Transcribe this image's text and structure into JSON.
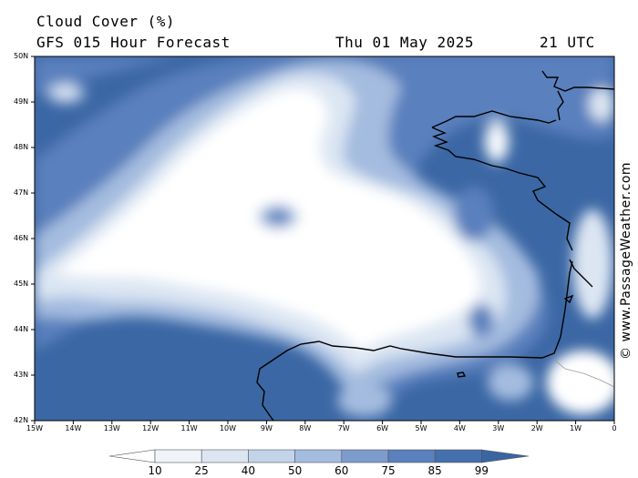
{
  "header": {
    "title_line1": "Cloud Cover (%)",
    "title_line2": "GFS 015 Hour Forecast",
    "date": "Thu 01 May 2025",
    "time": "21 UTC"
  },
  "credit": "© www.PassageWeather.com",
  "axes": {
    "lat_labels": [
      "50N",
      "49N",
      "48N",
      "47N",
      "46N",
      "45N",
      "44N",
      "43N",
      "42N"
    ],
    "lon_labels": [
      "15W",
      "14W",
      "13W",
      "12W",
      "11W",
      "10W",
      "9W",
      "8W",
      "7W",
      "6W",
      "5W",
      "4W",
      "3W",
      "2W",
      "1W",
      "0"
    ]
  },
  "legend": {
    "thresholds": [
      "10",
      "25",
      "40",
      "50",
      "60",
      "75",
      "85",
      "99"
    ],
    "colors": [
      "#ffffff",
      "#f0f4fa",
      "#dce6f3",
      "#c2d3ea",
      "#a4bcdf",
      "#7c9ccd",
      "#5a80bd",
      "#4470ad",
      "#3a65a0"
    ]
  },
  "map_colors": {
    "clear": "#ffffff",
    "light": "#dce6f3",
    "mid": "#a4bcdf",
    "dark": "#5a80bd",
    "overcast": "#3b67a4",
    "coast": "#000000",
    "border": "#9a9a9a"
  }
}
